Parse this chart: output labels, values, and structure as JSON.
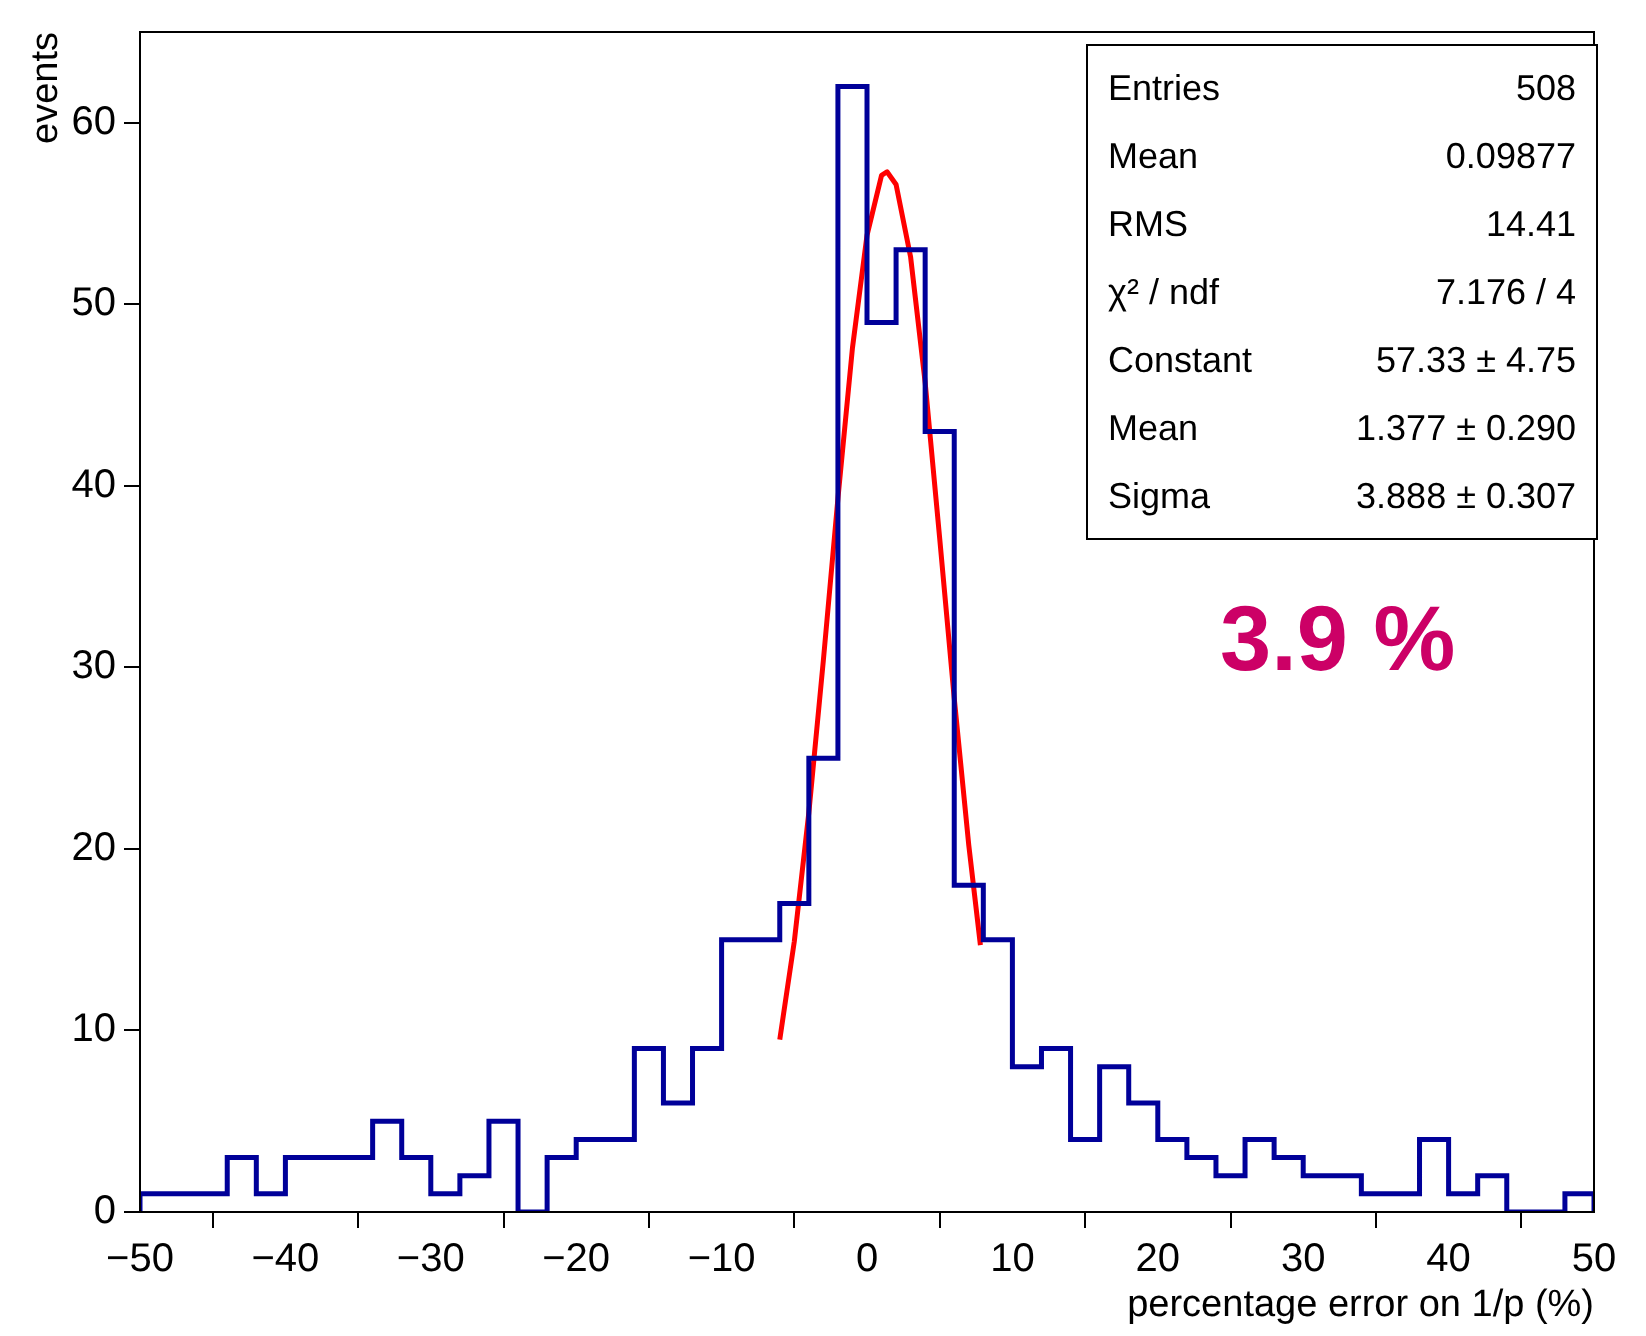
{
  "chart_data": {
    "type": "histogram",
    "xlabel": "percentage error on 1/p (%)",
    "ylabel": "events",
    "bins": [
      -50,
      -48,
      -46,
      -44,
      -42,
      -40,
      -38,
      -36,
      -34,
      -32,
      -30,
      -28,
      -26,
      -24,
      -22,
      -20,
      -18,
      -16,
      -14,
      -12,
      -10,
      -8,
      -6,
      -4,
      -2,
      0,
      2,
      4,
      6,
      8,
      10,
      12,
      14,
      16,
      18,
      20,
      22,
      24,
      26,
      28,
      30,
      32,
      34,
      36,
      38,
      40,
      42,
      44,
      46,
      48,
      50
    ],
    "series": [
      {
        "color": "#000099",
        "values": [
          1,
          1,
          1,
          3,
          1,
          3,
          3,
          3,
          5,
          3,
          1,
          2,
          5,
          0,
          3,
          4,
          4,
          9,
          6,
          9,
          15,
          15,
          17,
          25,
          62,
          49,
          53,
          43,
          18,
          15,
          8,
          9,
          4,
          8,
          6,
          4,
          3,
          2,
          4,
          3,
          2,
          2,
          1,
          1,
          4,
          1,
          2,
          0,
          0,
          1
        ]
      },
      {
        "type": "line",
        "color": "#ff0000",
        "x": [
          -6,
          -5,
          -4,
          -3,
          -2,
          -1,
          0,
          1,
          1.377,
          2,
          3,
          4,
          5,
          6,
          7,
          7.8
        ],
        "values": [
          9.5,
          14.9,
          22.0,
          30.4,
          39.3,
          47.6,
          53.8,
          57.1,
          57.3,
          56.6,
          52.6,
          45.7,
          37.1,
          28.3,
          20.2,
          14.7
        ]
      }
    ],
    "xlim": [
      -50,
      50
    ],
    "xticks": [
      -50,
      -40,
      -30,
      -20,
      -10,
      0,
      10,
      20,
      30,
      40,
      50
    ],
    "ylim": [
      0,
      65
    ],
    "yticks": [
      0,
      10,
      20,
      30,
      40,
      50,
      60
    ],
    "grid": false,
    "legend": false,
    "marker": "none",
    "annotations": [
      "3.9 %",
      "Entries",
      "508",
      "Mean",
      "0.09877",
      "RMS",
      "14.41",
      "χ² / ndf",
      "7.176 / 4",
      "Constant",
      "57.33 ± 4.75",
      "Mean",
      "1.377 ± 0.290",
      "Sigma",
      "3.888 ± 0.307"
    ]
  }
}
